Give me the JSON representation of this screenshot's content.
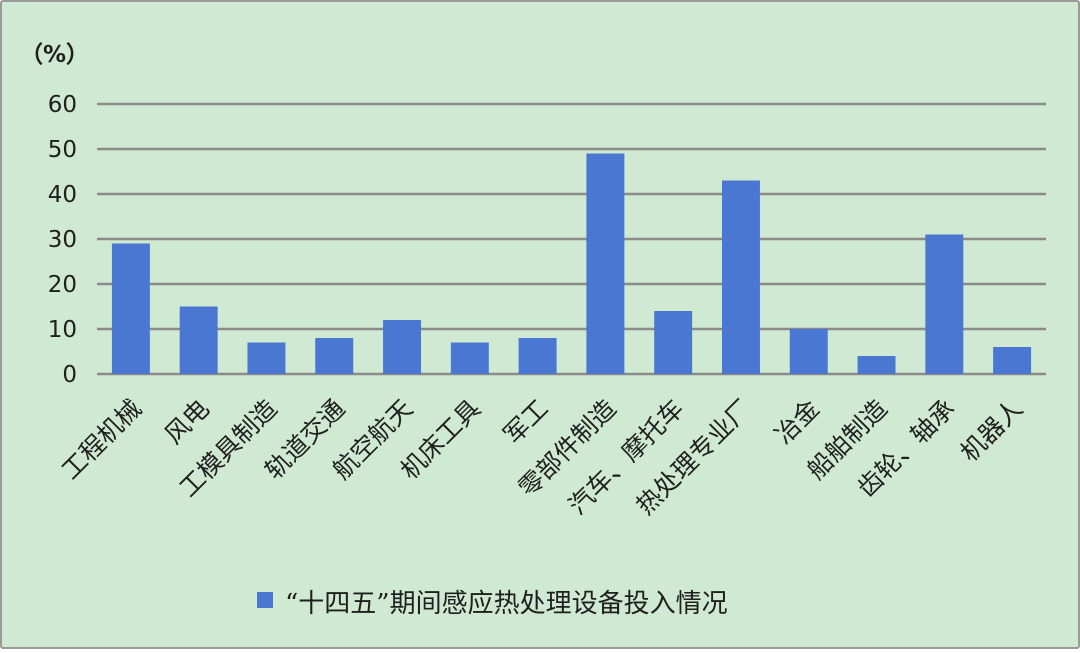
{
  "chart_data": {
    "type": "bar",
    "unit_label": "（%）",
    "categories": [
      "工程机械",
      "风电",
      "工模具制造",
      "轨道交通",
      "航空航天",
      "机床工具",
      "军工",
      "零部件制造",
      "汽车、摩托车",
      "热处理专业厂",
      "冶金",
      "船舶制造",
      "齿轮、轴承",
      "机器人"
    ],
    "series": [
      {
        "name": "“十四五”期间感应热处理设备投入情况",
        "values": [
          29,
          15,
          7,
          8,
          12,
          7,
          8,
          49,
          14,
          43,
          10,
          4,
          31,
          6
        ]
      }
    ],
    "ylim": [
      0,
      60
    ],
    "yticks": [
      0,
      10,
      20,
      30,
      40,
      50,
      60
    ],
    "grid": true,
    "legend_position": "bottom",
    "colors": {
      "background": "#d0e9d2",
      "bar": "#4a77d2",
      "grid": "#8b8b8b"
    }
  }
}
